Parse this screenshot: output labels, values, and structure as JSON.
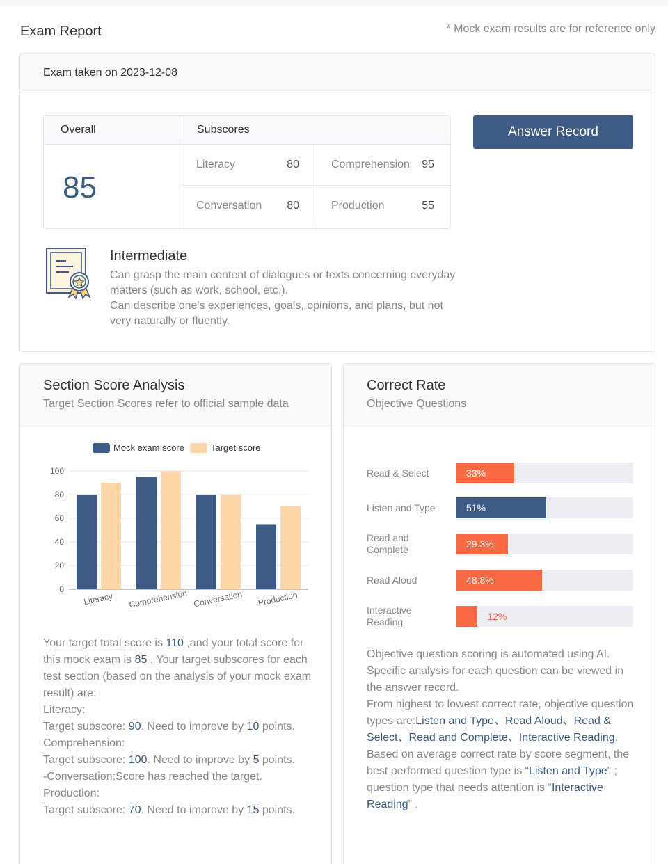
{
  "header": {
    "title": "Exam Report",
    "disclaimer": "* Mock exam results are for reference only"
  },
  "summary": {
    "exam_date_text": "Exam taken on 2023-12-08",
    "overall_label": "Overall",
    "subscores_label": "Subscores",
    "overall_score": "85",
    "subscores": [
      {
        "label": "Literacy",
        "value": "80"
      },
      {
        "label": "Comprehension",
        "value": "95"
      },
      {
        "label": "Conversation",
        "value": "80"
      },
      {
        "label": "Production",
        "value": "55"
      }
    ],
    "answer_record_label": "Answer Record",
    "level": {
      "icon": "certificate-icon",
      "title": "Intermediate",
      "desc1": "Can grasp the main content of dialogues or texts concerning everyday matters (such as work, school, etc.).",
      "desc2": "Can describe one's experiences, goals, opinions, and plans, but not very naturally or fluently."
    }
  },
  "section_analysis": {
    "title": "Section Score Analysis",
    "subtitle": "Target Section Scores refer to official sample data",
    "analysis": {
      "p1a": "Your target total score is ",
      "target_total": "110",
      "p1b": " ,and your total score for this mock exam is ",
      "total": "85",
      "p1c": " . Your target subscores for each test section (based on the analysis of your mock exam result) are:",
      "lit_head": "Literacy:",
      "lit_a": "Target subscore: ",
      "lit_target": "90",
      "lit_b": ". Need to improve by ",
      "lit_gap": "10",
      "lit_c": " points.",
      "comp_head": "Comprehension:",
      "comp_a": "Target subscore: ",
      "comp_target": "100",
      "comp_b": ". Need to improve by ",
      "comp_gap": "5",
      "comp_c": " points.",
      "conv_line": "-Conversation:Score has reached the target.",
      "prod_head": "Production:",
      "prod_a": "Target subscore: ",
      "prod_target": "70",
      "prod_b": ". Need to improve by ",
      "prod_gap": "15",
      "prod_c": " points."
    }
  },
  "chart_data": {
    "type": "bar",
    "categories": [
      "Literacy",
      "Comprehension",
      "Conversation",
      "Production"
    ],
    "series": [
      {
        "name": "Mock exam score",
        "values": [
          80,
          95,
          80,
          55
        ],
        "color": "#3d5b84"
      },
      {
        "name": "Target score",
        "values": [
          90,
          100,
          80,
          70
        ],
        "color": "#fdd7a8"
      }
    ],
    "ylim": [
      0,
      100
    ],
    "yticks": [
      0,
      20,
      40,
      60,
      80,
      100
    ],
    "grid": true,
    "legend": "top-center"
  },
  "correct_rate": {
    "title": "Correct Rate",
    "subtitle": "Objective Questions",
    "items": [
      {
        "label": "Read & Select",
        "value": 33,
        "text": "33%",
        "color": "#f96a44"
      },
      {
        "label": "Listen and Type",
        "value": 51,
        "text": "51%",
        "color": "#3d5b84"
      },
      {
        "label": "Read and Complete",
        "value": 29.3,
        "text": "29.3%",
        "color": "#f96a44"
      },
      {
        "label": "Read Aloud",
        "value": 48.8,
        "text": "48.8%",
        "color": "#f96a44"
      },
      {
        "label": "Interactive Reading",
        "value": 12,
        "text": "12%",
        "color": "#f96a44"
      }
    ],
    "notes": {
      "p1": "Objective question scoring is automated using AI. Specific analysis for each question can be viewed in the answer record.",
      "p2a": "From highest to lowest correct rate, objective question types are:",
      "order": "Listen and Type、Read Aloud、Read & Select、Read and Complete、Interactive Reading",
      "p2b": ".",
      "p3a": "Based on average correct rate by score segment, the best performed question type is  “",
      "best": "Listen and Type",
      "p3b": "” ; question type that needs attention is  “",
      "worst": "Interactive Reading",
      "p3c": "” ."
    }
  }
}
